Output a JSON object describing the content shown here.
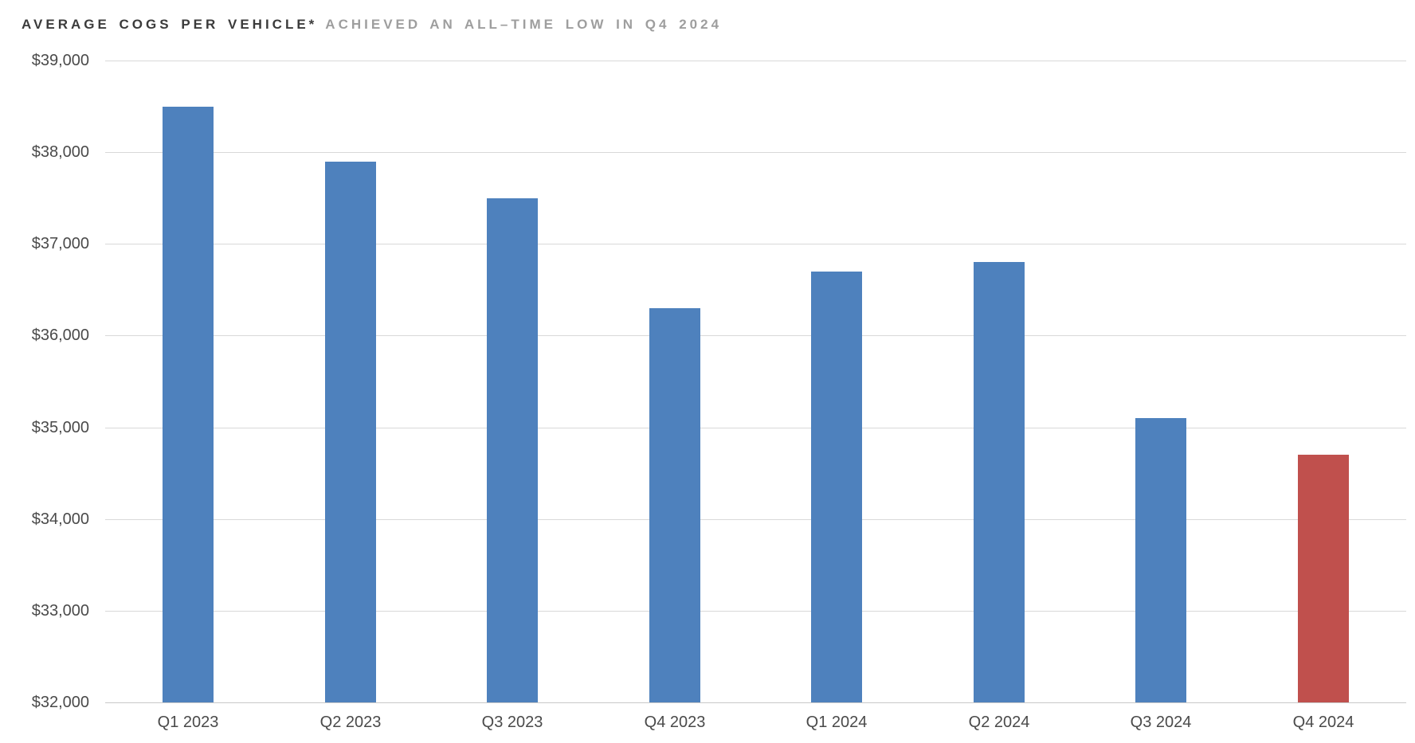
{
  "title": {
    "primary": "AVERAGE COGS PER VEHICLE*",
    "secondary": "ACHIEVED AN ALL–TIME LOW IN Q4 2024",
    "primary_color": "#3b3b3b",
    "secondary_color": "#9e9e9e"
  },
  "chart_data": {
    "type": "bar",
    "title": "AVERAGE COGS PER VEHICLE* ACHIEVED AN ALL–TIME LOW IN Q4 2024",
    "categories": [
      "Q1 2023",
      "Q2 2023",
      "Q3 2023",
      "Q4 2023",
      "Q1 2024",
      "Q2 2024",
      "Q3 2024",
      "Q4 2024"
    ],
    "values": [
      38500,
      37900,
      37500,
      36300,
      36700,
      36800,
      35100,
      34700
    ],
    "highlight_index": 7,
    "highlight_reason": "all-time low quarter",
    "bar_color": "#4e81bd",
    "highlight_color": "#c0504d",
    "xlabel": "",
    "ylabel": "",
    "ylim": [
      32000,
      39000
    ],
    "ytick_step": 1000,
    "yticks": [
      {
        "value": 39000,
        "label": "$39,000"
      },
      {
        "value": 38000,
        "label": "$38,000"
      },
      {
        "value": 37000,
        "label": "$37,000"
      },
      {
        "value": 36000,
        "label": "$36,000"
      },
      {
        "value": 35000,
        "label": "$35,000"
      },
      {
        "value": 34000,
        "label": "$34,000"
      },
      {
        "value": 33000,
        "label": "$33,000"
      },
      {
        "value": 32000,
        "label": "$32,000"
      }
    ],
    "grid": true,
    "gridline_color": "#d9d9d9",
    "axis_line_color": "#c9c9c9",
    "tick_label_color": "#4a4a4a",
    "legend": "none"
  }
}
